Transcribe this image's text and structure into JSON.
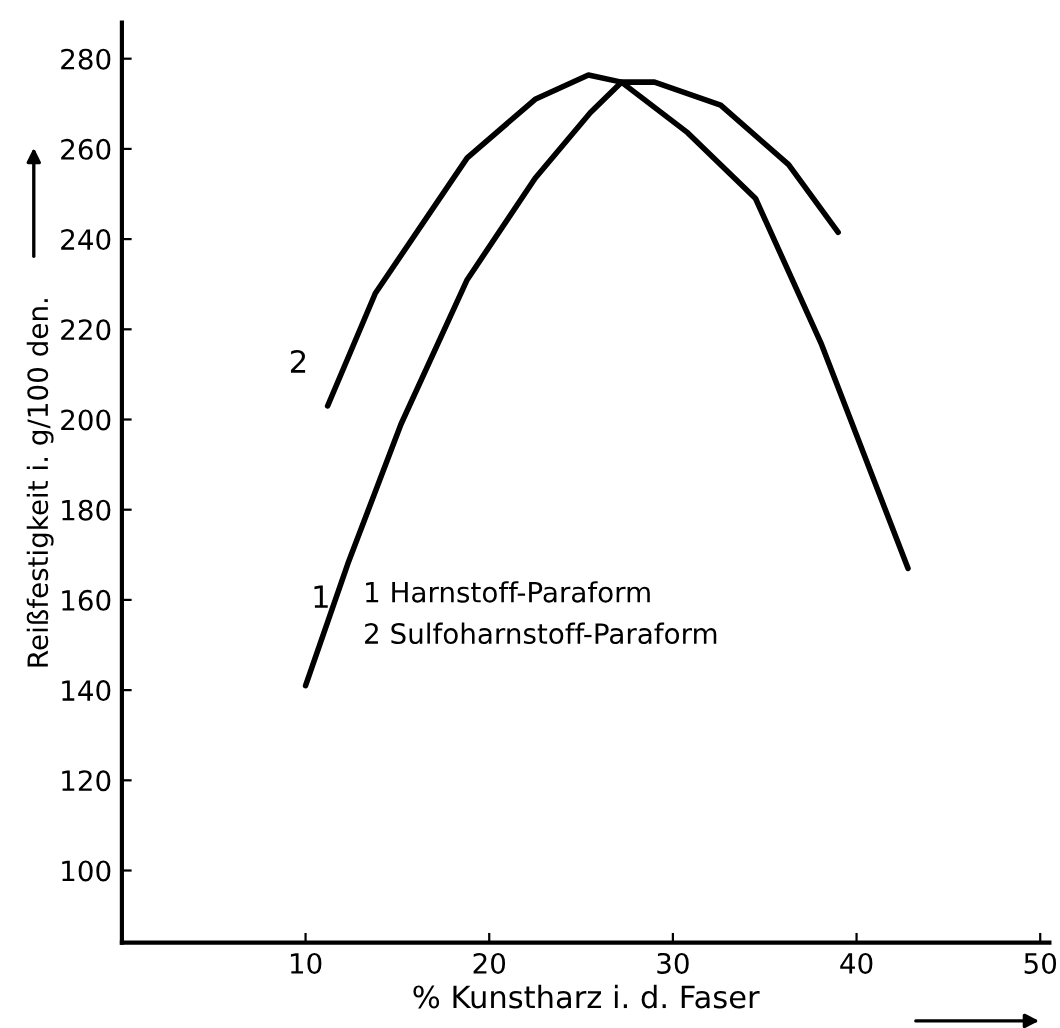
{
  "chart_data": {
    "type": "line",
    "xlabel": "% Kunstharz i. d. Faser",
    "ylabel": "Reißfestigkeit i. g/100 den.",
    "series": [
      {
        "name": "1",
        "color": "#000000",
        "x": [
          10,
          12.3,
          15.2,
          18.8,
          22.5,
          25.5,
          27.2,
          29.0,
          32.6,
          36.3,
          39.0
        ],
        "values": [
          141,
          168,
          199,
          231,
          253.5,
          268,
          274.8,
          274.8,
          269.7,
          256.5,
          241.5
        ]
      },
      {
        "name": "2",
        "color": "#000000",
        "x": [
          11.2,
          13.8,
          18.8,
          22.5,
          25.4,
          27.2,
          30.8,
          34.5,
          38.1,
          42.8
        ],
        "values": [
          203,
          228,
          258,
          271,
          276.4,
          274.8,
          263.6,
          249,
          216.6,
          167
        ]
      }
    ],
    "xlim": [
      0,
      50.5
    ],
    "xticks": [
      10,
      20,
      30,
      40,
      50
    ],
    "ylim": [
      84,
      288
    ],
    "yticks": [
      100,
      120,
      140,
      160,
      180,
      200,
      220,
      240,
      260,
      280
    ],
    "annotations": [
      "1 Harnstoff-Paraform",
      "2 Sulfoharnstoff-Paraform"
    ],
    "grid": false,
    "legend": false,
    "marker": "none",
    "line_style": "solid"
  }
}
